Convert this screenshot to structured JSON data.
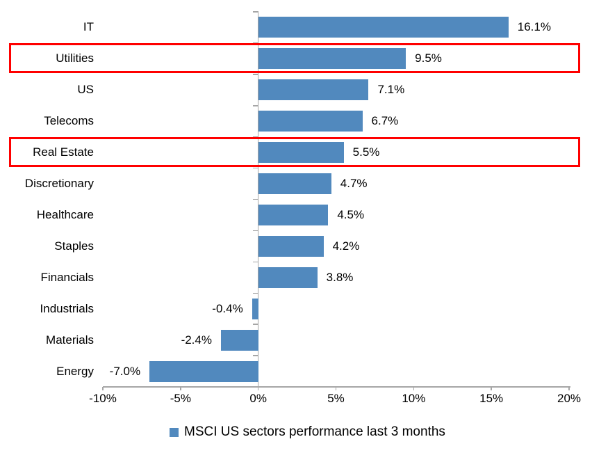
{
  "chart_data": {
    "type": "bar",
    "orientation": "horizontal",
    "title": "",
    "xlabel": "",
    "ylabel": "",
    "categories": [
      "IT",
      "Utilities",
      "US",
      "Telecoms",
      "Real Estate",
      "Discretionary",
      "Healthcare",
      "Staples",
      "Financials",
      "Industrials",
      "Materials",
      "Energy"
    ],
    "values": [
      16.1,
      9.5,
      7.1,
      6.7,
      5.5,
      4.7,
      4.5,
      4.2,
      3.8,
      -0.4,
      -2.4,
      -7.0
    ],
    "value_labels": [
      "16.1%",
      "9.5%",
      "7.1%",
      "6.7%",
      "5.5%",
      "4.7%",
      "4.5%",
      "4.2%",
      "3.8%",
      "-0.4%",
      "-2.4%",
      "-7.0%"
    ],
    "xlim": [
      -10,
      20
    ],
    "x_tick_values": [
      -10,
      -5,
      0,
      5,
      10,
      15,
      20
    ],
    "x_tick_labels": [
      "-10%",
      "-5%",
      "0%",
      "5%",
      "10%",
      "15%",
      "20%"
    ],
    "grid": false,
    "legend": {
      "position": "bottom",
      "label": "MSCI US sectors performance last 3 months"
    },
    "colors": {
      "bar": "#5189BE",
      "axis": "#A6A6A6",
      "text": "#000000",
      "highlight": "#FF0000"
    },
    "highlighted_categories": [
      "Utilities",
      "Real Estate"
    ]
  }
}
